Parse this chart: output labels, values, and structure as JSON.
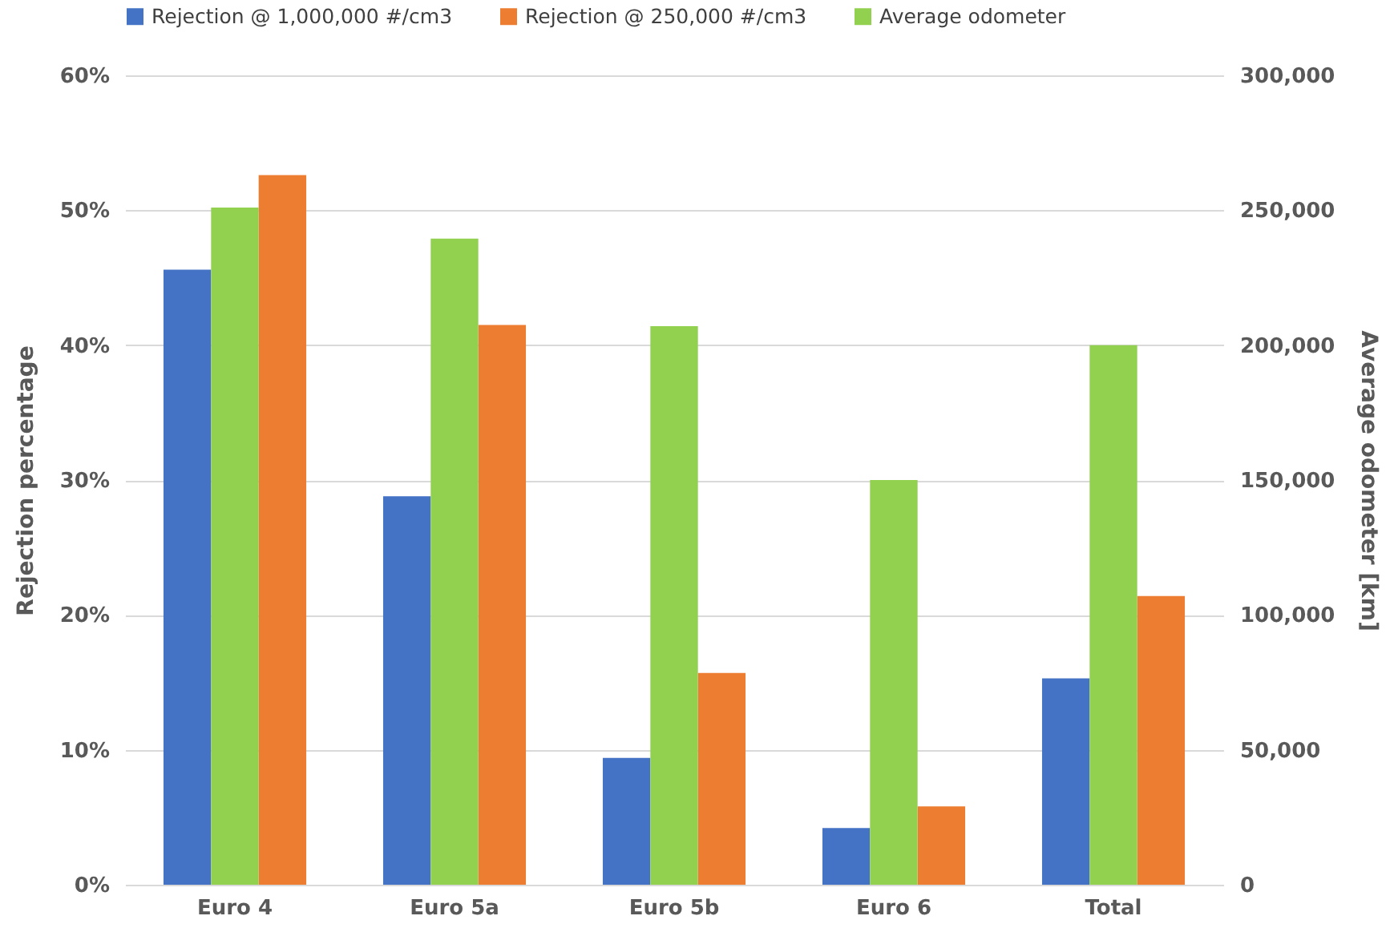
{
  "chart_data": {
    "type": "bar",
    "categories": [
      "Euro 4",
      "Euro 5a",
      "Euro 5b",
      "Euro 6",
      "Total"
    ],
    "series": [
      {
        "name": "Rejection @ 1,000,000 #/cm3",
        "color": "#4472c4",
        "values": [
          45.6,
          28.8,
          9.4,
          4.2,
          15.3
        ]
      },
      {
        "name": "Average odometer",
        "color": "#92d050",
        "axis": "y2",
        "values": [
          251000,
          239500,
          207000,
          150000,
          200000
        ]
      },
      {
        "name": "Rejection @ 250,000 #/cm3",
        "color": "#ed7d31",
        "values": [
          52.6,
          41.5,
          15.7,
          5.8,
          21.4
        ]
      }
    ],
    "ylabel": "Rejection percentage",
    "y2label": "Average odometer [km]",
    "ylim": [
      0,
      60
    ],
    "yticks": [
      {
        "value": 0,
        "label": "0%"
      },
      {
        "value": 10,
        "label": "10%"
      },
      {
        "value": 20,
        "label": "20%"
      },
      {
        "value": 30,
        "label": "30%"
      },
      {
        "value": 40,
        "label": "40%"
      },
      {
        "value": 50,
        "label": "50%"
      },
      {
        "value": 60,
        "label": "60%"
      }
    ],
    "y2lim": [
      0,
      300000
    ],
    "y2ticks": [
      {
        "value": 0,
        "label": "0"
      },
      {
        "value": 50000,
        "label": "50,000"
      },
      {
        "value": 100000,
        "label": "100,000"
      },
      {
        "value": 150000,
        "label": "150,000"
      },
      {
        "value": 200000,
        "label": "200,000"
      },
      {
        "value": 250000,
        "label": "250,000"
      },
      {
        "value": 300000,
        "label": "300,000"
      }
    ],
    "grid": "y",
    "legend": "top"
  }
}
